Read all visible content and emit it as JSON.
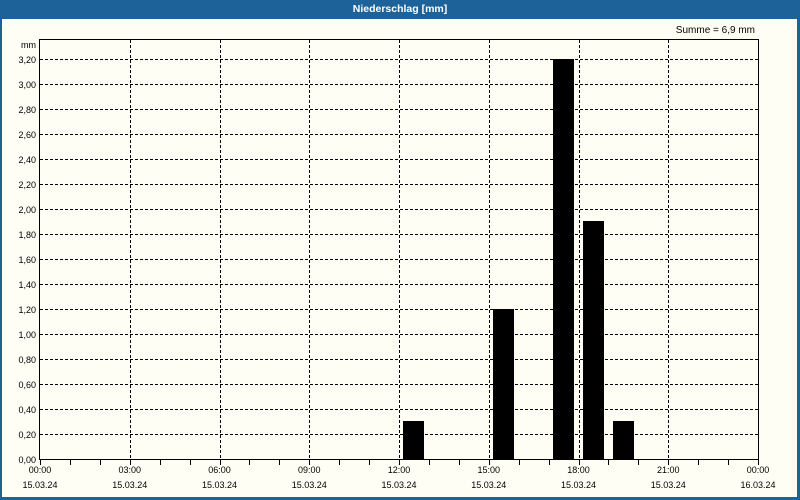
{
  "titlebar": {
    "title": "Niederschlag [mm]"
  },
  "summary_label": "Summe = 6,9 mm",
  "colors": {
    "titlebar_bg": "#1d6399",
    "titlebar_text": "#ffffff",
    "window_border": "#1d6399",
    "background": "#fefef4",
    "bar_fill": "#000000",
    "grid_and_axis": "#000000"
  },
  "chart_data": {
    "type": "bar",
    "title": "Niederschlag [mm]",
    "unit_label": "mm",
    "sum_label": "Summe = 6,9 mm",
    "sum_mm": 6.9,
    "grid": "dashed",
    "legend": "none",
    "ylim": [
      0,
      3.36
    ],
    "ytick_step_mm": 0.2,
    "ytick_labels": [
      "0,00",
      "0,20",
      "0,40",
      "0,60",
      "0,80",
      "1,00",
      "1,20",
      "1,40",
      "1,60",
      "1,80",
      "2,00",
      "2,20",
      "2,40",
      "2,60",
      "2,80",
      "3,00",
      "3,20"
    ],
    "x_total_hours": 24,
    "x_major_step_hours": 3,
    "x_minor_tick_hours": 1,
    "x_start": "15.03.24 00:00",
    "x_end": "16.03.24 00:00",
    "xtick_labels": [
      {
        "hour": 0,
        "time": "00:00",
        "date": "15.03.24"
      },
      {
        "hour": 3,
        "time": "03:00",
        "date": "15.03.24"
      },
      {
        "hour": 6,
        "time": "06:00",
        "date": "15.03.24"
      },
      {
        "hour": 9,
        "time": "09:00",
        "date": "15.03.24"
      },
      {
        "hour": 12,
        "time": "12:00",
        "date": "15.03.24"
      },
      {
        "hour": 15,
        "time": "15:00",
        "date": "15.03.24"
      },
      {
        "hour": 18,
        "time": "18:00",
        "date": "15.03.24"
      },
      {
        "hour": 21,
        "time": "21:00",
        "date": "15.03.24"
      },
      {
        "hour": 24,
        "time": "00:00",
        "date": "16.03.24"
      }
    ],
    "bars": [
      {
        "start_hour": 12,
        "end_hour": 13,
        "value_mm": 0.3
      },
      {
        "start_hour": 15,
        "end_hour": 16,
        "value_mm": 1.2
      },
      {
        "start_hour": 17,
        "end_hour": 18,
        "value_mm": 3.2
      },
      {
        "start_hour": 18,
        "end_hour": 19,
        "value_mm": 1.9
      },
      {
        "start_hour": 19,
        "end_hour": 20,
        "value_mm": 0.3
      }
    ]
  }
}
